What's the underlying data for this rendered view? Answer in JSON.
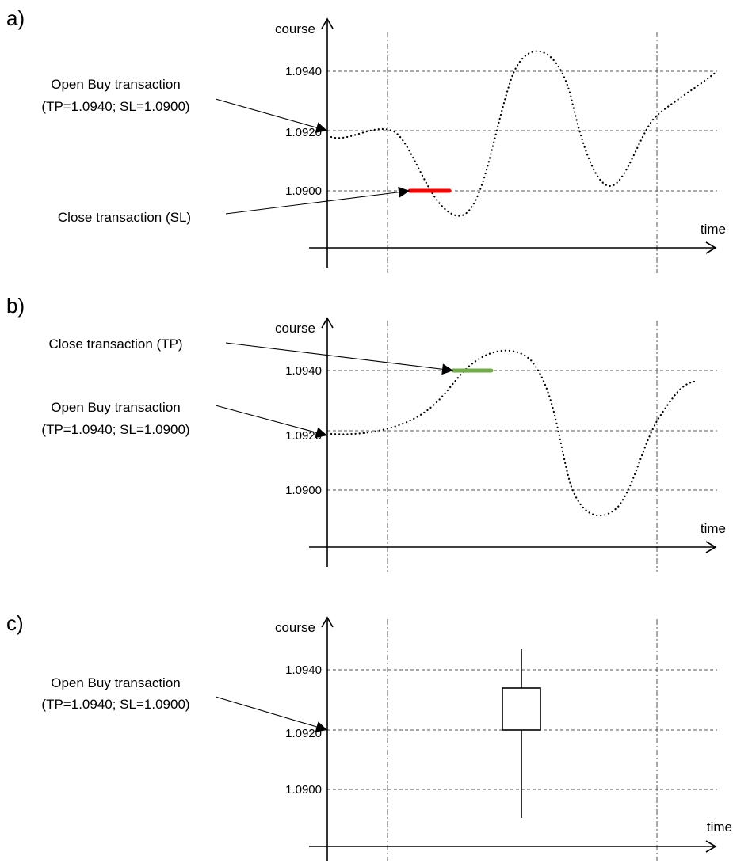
{
  "colors": {
    "stop_loss": "#ff0000",
    "take_profit": "#70ad47",
    "axes": "#000000",
    "grid": "#555555"
  },
  "axes": {
    "y_label": "course",
    "x_label": "time"
  },
  "panels": [
    {
      "id": "a",
      "label": "a)",
      "y_ticks": [
        "1.0940",
        "1.0920",
        "1.0900"
      ],
      "annotations": {
        "open_line1": "Open Buy transaction",
        "open_line2": "(TP=1.0940; SL=1.0900)",
        "close": "Close transaction (SL)"
      }
    },
    {
      "id": "b",
      "label": "b)",
      "y_ticks": [
        "1.0940",
        "1.0920",
        "1.0900"
      ],
      "annotations": {
        "open_line1": "Open Buy transaction",
        "open_line2": "(TP=1.0940; SL=1.0900)",
        "close": "Close transaction (TP)"
      }
    },
    {
      "id": "c",
      "label": "c)",
      "y_ticks": [
        "1.0940",
        "1.0920",
        "1.0900"
      ],
      "annotations": {
        "open_line1": "Open Buy transaction",
        "open_line2": "(TP=1.0940; SL=1.0900)"
      }
    }
  ]
}
